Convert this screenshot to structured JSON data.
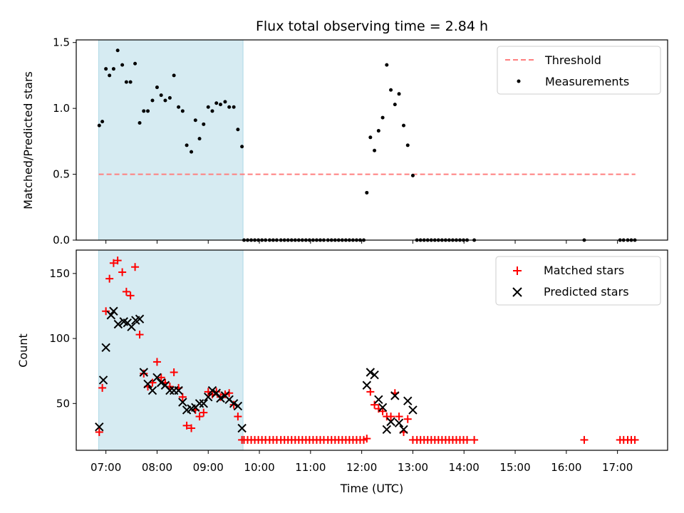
{
  "chart_data": {
    "type": "scatter",
    "title": "Flux total observing time = 2.84 h",
    "xlabel": "Time (UTC)",
    "x_ticks": [
      "07:00",
      "08:00",
      "09:00",
      "10:00",
      "11:00",
      "12:00",
      "13:00",
      "14:00",
      "15:00",
      "16:00",
      "17:00"
    ],
    "x_tick_hours": [
      7,
      8,
      9,
      10,
      11,
      12,
      13,
      14,
      15,
      16,
      17
    ],
    "xlim": [
      6.42,
      17.98
    ],
    "shaded_interval_hours": [
      6.86,
      9.68
    ],
    "shade_color": "#add8e6",
    "panels": [
      {
        "name": "ratio",
        "ylabel": "Matched/Predicted stars",
        "ylim": [
          0,
          1.52
        ],
        "y_ticks": [
          0.0,
          0.5,
          1.0,
          1.5
        ],
        "y_tick_labels": [
          "0.0",
          "0.5",
          "1.0",
          "1.5"
        ],
        "legend": [
          {
            "label": "Threshold",
            "color": "#ff7f7f",
            "marker": "dashed-line"
          },
          {
            "label": "Measurements",
            "color": "#000000",
            "marker": "dot"
          }
        ],
        "threshold": {
          "value": 0.5,
          "x_range_hours": [
            6.86,
            17.35
          ]
        },
        "measurements": {
          "x": [
            6.87,
            6.93,
            7.0,
            7.07,
            7.15,
            7.23,
            7.32,
            7.4,
            7.48,
            7.57,
            7.66,
            7.74,
            7.82,
            7.91,
            8.0,
            8.08,
            8.16,
            8.25,
            8.33,
            8.42,
            8.5,
            8.58,
            8.67,
            8.75,
            8.83,
            8.91,
            9.0,
            9.08,
            9.16,
            9.24,
            9.33,
            9.41,
            9.5,
            9.58,
            9.66,
            9.7,
            9.77,
            9.84,
            9.91,
            9.98,
            10.05,
            10.12,
            10.2,
            10.27,
            10.34,
            10.42,
            10.49,
            10.56,
            10.63,
            10.7,
            10.77,
            10.84,
            10.91,
            10.98,
            11.05,
            11.12,
            11.19,
            11.26,
            11.34,
            11.41,
            11.48,
            11.55,
            11.62,
            11.69,
            11.76,
            11.83,
            11.9,
            11.97,
            12.04,
            12.1,
            12.17,
            12.25,
            12.33,
            12.41,
            12.49,
            12.57,
            12.65,
            12.73,
            12.82,
            12.9,
            13.0,
            13.08,
            13.15,
            13.22,
            13.29,
            13.36,
            13.43,
            13.5,
            13.57,
            13.64,
            13.71,
            13.78,
            13.85,
            13.92,
            13.99,
            14.06,
            14.2,
            16.35,
            17.05,
            17.12,
            17.2,
            17.27,
            17.34
          ],
          "y": [
            0.87,
            0.9,
            1.3,
            1.25,
            1.3,
            1.44,
            1.33,
            1.2,
            1.2,
            1.34,
            0.89,
            0.98,
            0.98,
            1.06,
            1.16,
            1.1,
            1.06,
            1.08,
            1.25,
            1.01,
            0.98,
            0.72,
            0.67,
            0.91,
            0.77,
            0.88,
            1.01,
            0.98,
            1.04,
            1.03,
            1.05,
            1.01,
            1.01,
            0.84,
            0.71,
            0,
            0,
            0,
            0,
            0,
            0,
            0,
            0,
            0,
            0,
            0,
            0,
            0,
            0,
            0,
            0,
            0,
            0,
            0,
            0,
            0,
            0,
            0,
            0,
            0,
            0,
            0,
            0,
            0,
            0,
            0,
            0,
            0,
            0,
            0.36,
            0.78,
            0.68,
            0.83,
            0.93,
            1.33,
            1.14,
            1.03,
            1.11,
            0.87,
            0.72,
            0.49,
            0,
            0,
            0,
            0,
            0,
            0,
            0,
            0,
            0,
            0,
            0,
            0,
            0,
            0,
            0,
            0,
            0,
            0,
            0,
            0,
            0,
            0
          ]
        }
      },
      {
        "name": "counts",
        "ylabel": "Count",
        "ylim": [
          14,
          168
        ],
        "y_ticks": [
          50,
          100,
          150
        ],
        "y_tick_labels": [
          "50",
          "100",
          "150"
        ],
        "legend": [
          {
            "label": "Matched stars",
            "color": "#ff0000",
            "marker": "plus"
          },
          {
            "label": "Predicted stars",
            "color": "#000000",
            "marker": "x"
          }
        ],
        "matched": {
          "x": [
            6.87,
            6.93,
            7.0,
            7.07,
            7.15,
            7.23,
            7.32,
            7.4,
            7.48,
            7.57,
            7.66,
            7.74,
            7.82,
            7.91,
            8.0,
            8.08,
            8.16,
            8.25,
            8.33,
            8.42,
            8.5,
            8.58,
            8.67,
            8.75,
            8.83,
            8.91,
            9.0,
            9.08,
            9.16,
            9.24,
            9.33,
            9.41,
            9.5,
            9.58,
            9.66,
            9.7,
            9.77,
            9.84,
            9.91,
            9.98,
            10.05,
            10.12,
            10.2,
            10.27,
            10.34,
            10.42,
            10.49,
            10.56,
            10.63,
            10.7,
            10.77,
            10.84,
            10.91,
            10.98,
            11.05,
            11.12,
            11.19,
            11.26,
            11.34,
            11.41,
            11.48,
            11.55,
            11.62,
            11.69,
            11.76,
            11.83,
            11.9,
            11.97,
            12.04,
            12.1,
            12.17,
            12.25,
            12.33,
            12.41,
            12.49,
            12.57,
            12.65,
            12.73,
            12.82,
            12.9,
            13.0,
            13.08,
            13.15,
            13.22,
            13.29,
            13.36,
            13.43,
            13.5,
            13.57,
            13.64,
            13.71,
            13.78,
            13.85,
            13.92,
            13.99,
            14.06,
            14.2,
            16.35,
            17.05,
            17.12,
            17.2,
            17.27,
            17.34
          ],
          "y": [
            28,
            62,
            121,
            146,
            158,
            160,
            151,
            136,
            133,
            155,
            103,
            73,
            63,
            66,
            82,
            70,
            66,
            63,
            74,
            62,
            55,
            33,
            31,
            45,
            40,
            43,
            59,
            57,
            59,
            55,
            57,
            58,
            49,
            40,
            22,
            22,
            22,
            22,
            22,
            22,
            22,
            22,
            22,
            22,
            22,
            22,
            22,
            22,
            22,
            22,
            22,
            22,
            22,
            22,
            22,
            22,
            22,
            22,
            22,
            22,
            22,
            22,
            22,
            22,
            22,
            22,
            22,
            22,
            22,
            23,
            59,
            49,
            46,
            44,
            40,
            40,
            58,
            40,
            28,
            38,
            22,
            22,
            22,
            22,
            22,
            22,
            22,
            22,
            22,
            22,
            22,
            22,
            22,
            22,
            22,
            22,
            22,
            22,
            22,
            22,
            22,
            22,
            22
          ]
        },
        "predicted": {
          "x": [
            6.87,
            6.95,
            7.0,
            7.1,
            7.15,
            7.24,
            7.35,
            7.42,
            7.5,
            7.58,
            7.66,
            7.74,
            7.82,
            7.91,
            8.0,
            8.08,
            8.16,
            8.25,
            8.33,
            8.42,
            8.5,
            8.58,
            8.67,
            8.75,
            8.83,
            8.91,
            9.0,
            9.08,
            9.16,
            9.24,
            9.33,
            9.41,
            9.5,
            9.58,
            9.66,
            12.1,
            12.17,
            12.25,
            12.33,
            12.41,
            12.49,
            12.57,
            12.65,
            12.73,
            12.82,
            12.9,
            13.0
          ],
          "y": [
            32,
            68,
            93,
            118,
            121,
            111,
            113,
            112,
            109,
            114,
            115,
            74,
            65,
            60,
            70,
            66,
            64,
            60,
            60,
            60,
            51,
            45,
            46,
            47,
            50,
            50,
            55,
            60,
            58,
            54,
            56,
            53,
            50,
            48,
            31,
            64,
            74,
            72,
            53,
            47,
            30,
            36,
            56,
            35,
            30,
            52,
            45
          ]
        }
      }
    ]
  }
}
